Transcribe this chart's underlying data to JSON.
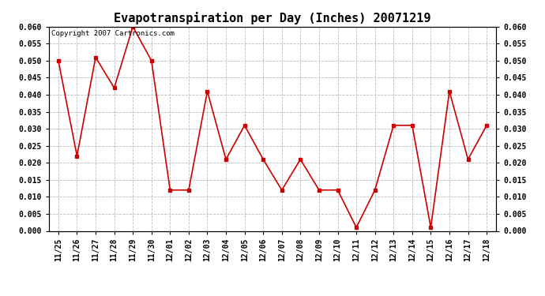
{
  "title": "Evapotranspiration per Day (Inches) 20071219",
  "copyright_text": "Copyright 2007 Cartronics.com",
  "x_labels": [
    "11/25",
    "11/26",
    "11/27",
    "11/28",
    "11/29",
    "11/30",
    "12/01",
    "12/02",
    "12/03",
    "12/04",
    "12/05",
    "12/06",
    "12/07",
    "12/08",
    "12/09",
    "12/10",
    "12/11",
    "12/12",
    "12/13",
    "12/14",
    "12/15",
    "12/16",
    "12/17",
    "12/18"
  ],
  "y_values": [
    0.05,
    0.022,
    0.051,
    0.042,
    0.06,
    0.05,
    0.012,
    0.012,
    0.041,
    0.021,
    0.031,
    0.021,
    0.012,
    0.021,
    0.012,
    0.012,
    0.001,
    0.012,
    0.031,
    0.031,
    0.001,
    0.041,
    0.021,
    0.031
  ],
  "ylim": [
    0.0,
    0.06
  ],
  "yticks": [
    0.0,
    0.005,
    0.01,
    0.015,
    0.02,
    0.025,
    0.03,
    0.035,
    0.04,
    0.045,
    0.05,
    0.055,
    0.06
  ],
  "line_color": "#cc0000",
  "marker": "s",
  "marker_size": 3,
  "background_color": "#ffffff",
  "grid_color": "#bbbbbb",
  "title_fontsize": 11,
  "tick_fontsize": 7,
  "copyright_fontsize": 6.5
}
